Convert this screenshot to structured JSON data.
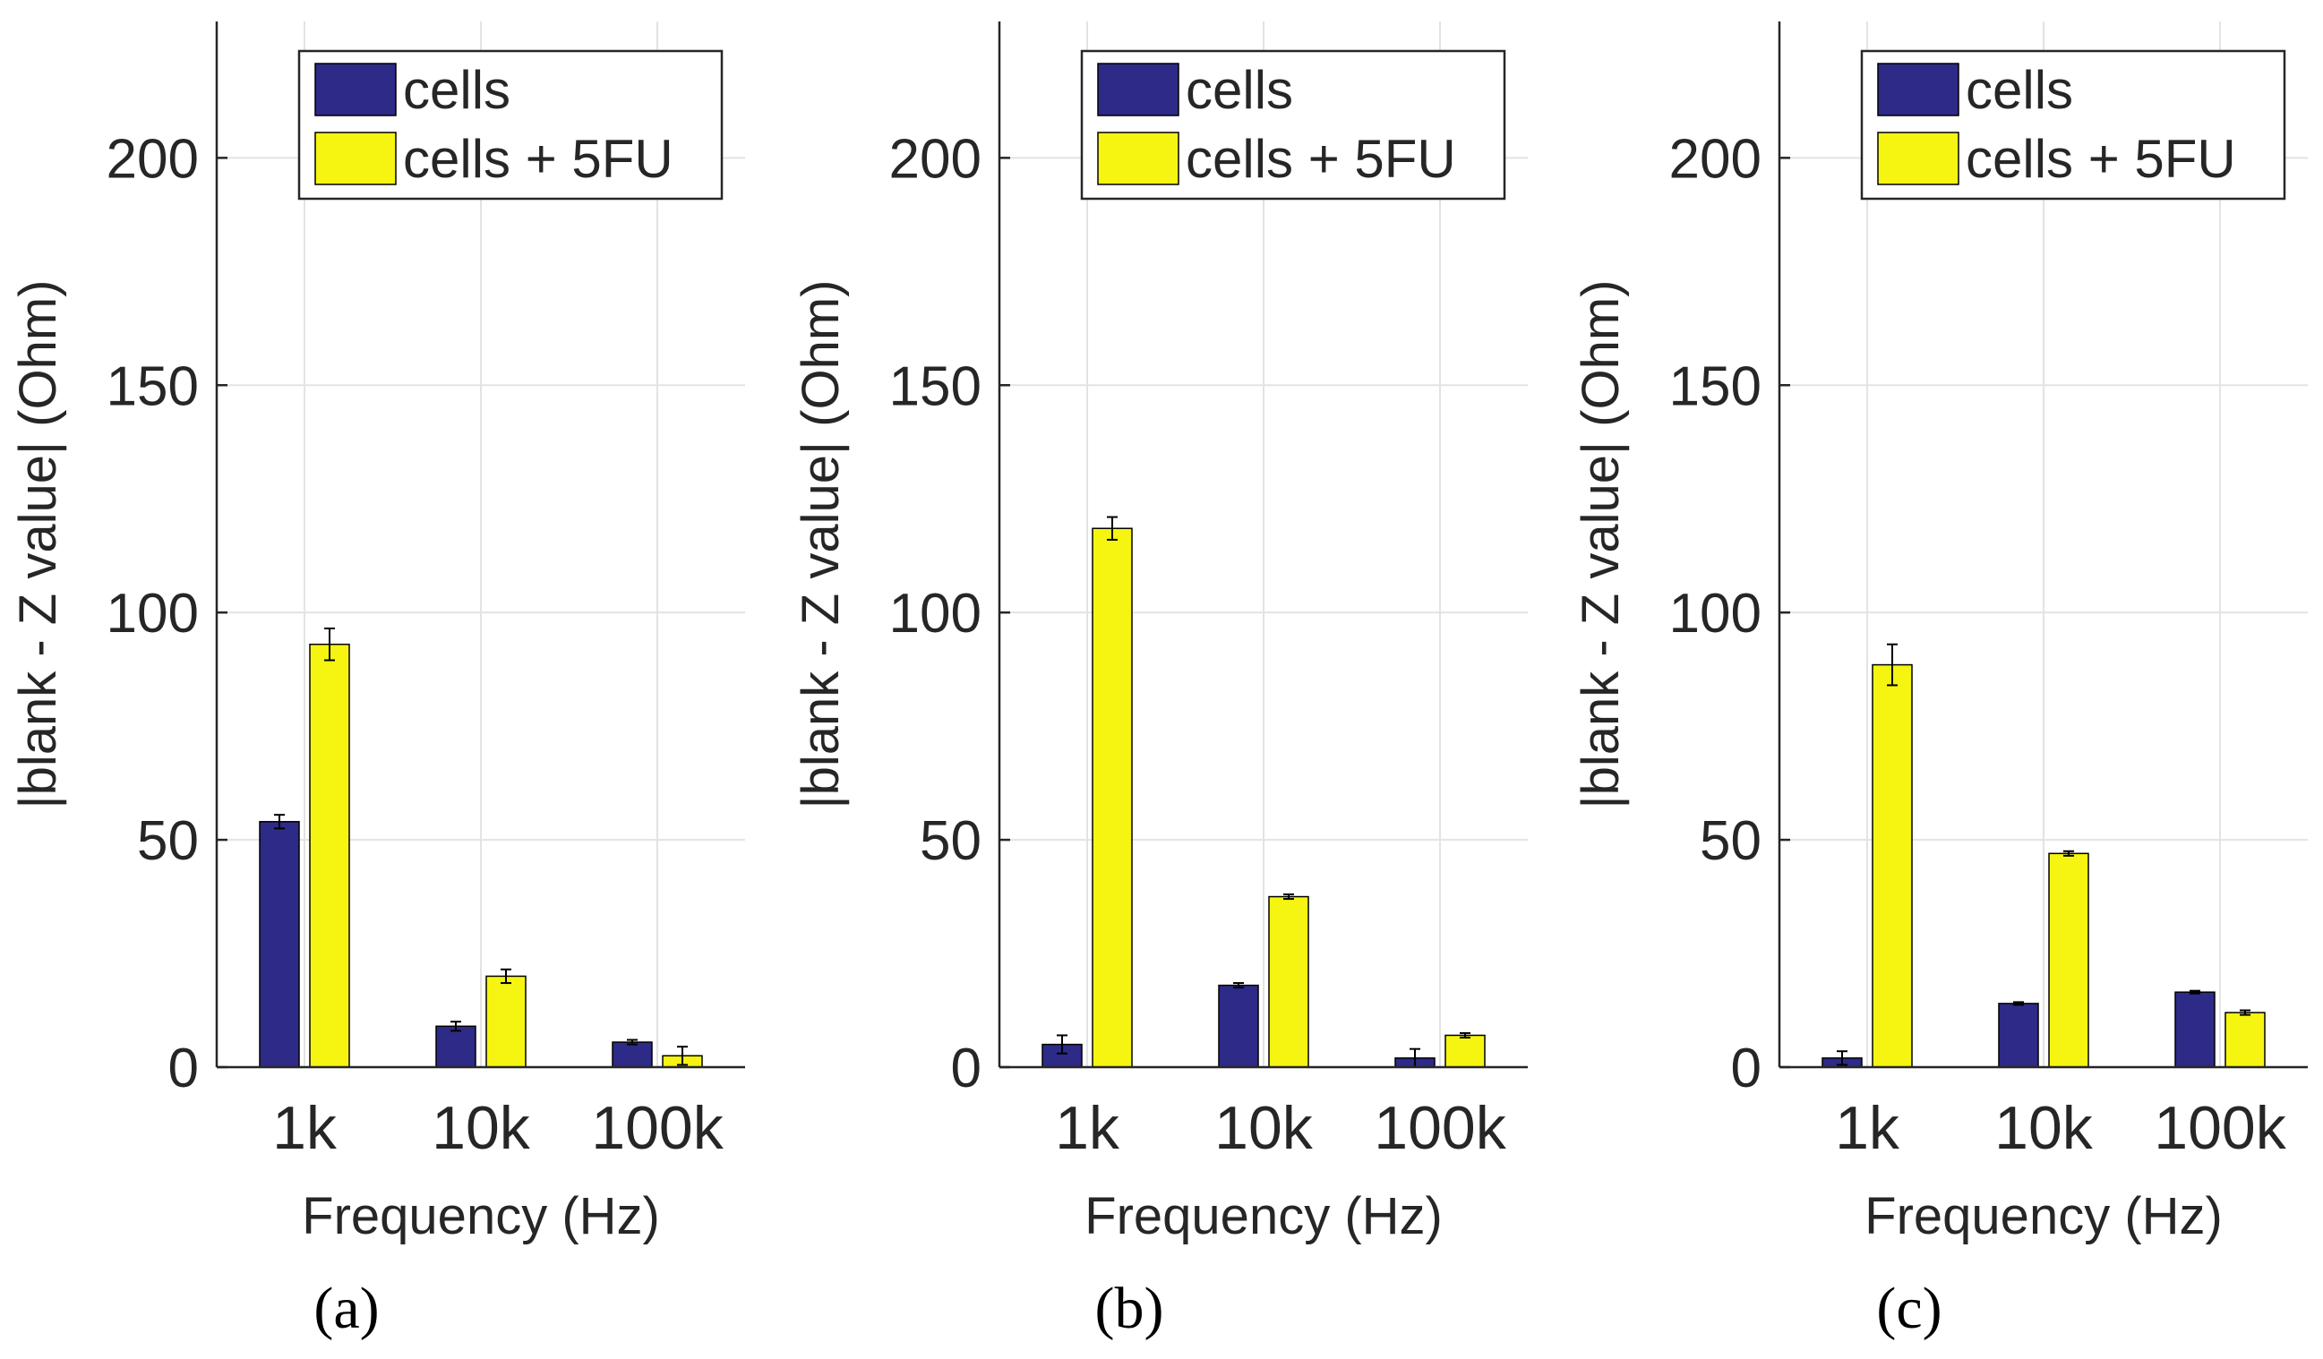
{
  "chart_data": [
    {
      "type": "bar",
      "panel_label": "(a)",
      "categories": [
        "1k",
        "10k",
        "100k"
      ],
      "xlabel": "Frequency (Hz)",
      "ylabel": "|blank - Z value| (Ohm)",
      "ylim": [
        0,
        230
      ],
      "yticks": [
        0,
        50,
        100,
        150,
        200
      ],
      "grid": true,
      "legend_position": "top-right",
      "series": [
        {
          "name": "cells",
          "color": "#2e2a87",
          "values": [
            54,
            9,
            5.5
          ],
          "errors": [
            1.5,
            1,
            0.5
          ]
        },
        {
          "name": "cells + 5FU",
          "color": "#f5f511",
          "values": [
            93,
            20,
            2.5
          ],
          "errors": [
            3.5,
            1.5,
            2
          ]
        }
      ]
    },
    {
      "type": "bar",
      "panel_label": "(b)",
      "categories": [
        "1k",
        "10k",
        "100k"
      ],
      "xlabel": "Frequency (Hz)",
      "ylabel": "|blank - Z value| (Ohm)",
      "ylim": [
        0,
        230
      ],
      "yticks": [
        0,
        50,
        100,
        150,
        200
      ],
      "grid": true,
      "legend_position": "top-right",
      "series": [
        {
          "name": "cells",
          "color": "#2e2a87",
          "values": [
            5,
            18,
            2
          ],
          "errors": [
            2,
            0.5,
            2
          ]
        },
        {
          "name": "cells + 5FU",
          "color": "#f5f511",
          "values": [
            118.5,
            37.5,
            7
          ],
          "errors": [
            2.5,
            0.5,
            0.5
          ]
        }
      ]
    },
    {
      "type": "bar",
      "panel_label": "(c)",
      "categories": [
        "1k",
        "10k",
        "100k"
      ],
      "xlabel": "Frequency (Hz)",
      "ylabel": "|blank - Z value| (Ohm)",
      "ylim": [
        0,
        230
      ],
      "yticks": [
        0,
        50,
        100,
        150,
        200
      ],
      "grid": true,
      "legend_position": "top-right",
      "series": [
        {
          "name": "cells",
          "color": "#2e2a87",
          "values": [
            2,
            14,
            16.5
          ],
          "errors": [
            1.5,
            0.3,
            0.3
          ]
        },
        {
          "name": "cells + 5FU",
          "color": "#f5f511",
          "values": [
            88.5,
            47,
            12
          ],
          "errors": [
            4.5,
            0.5,
            0.5
          ]
        }
      ]
    }
  ]
}
